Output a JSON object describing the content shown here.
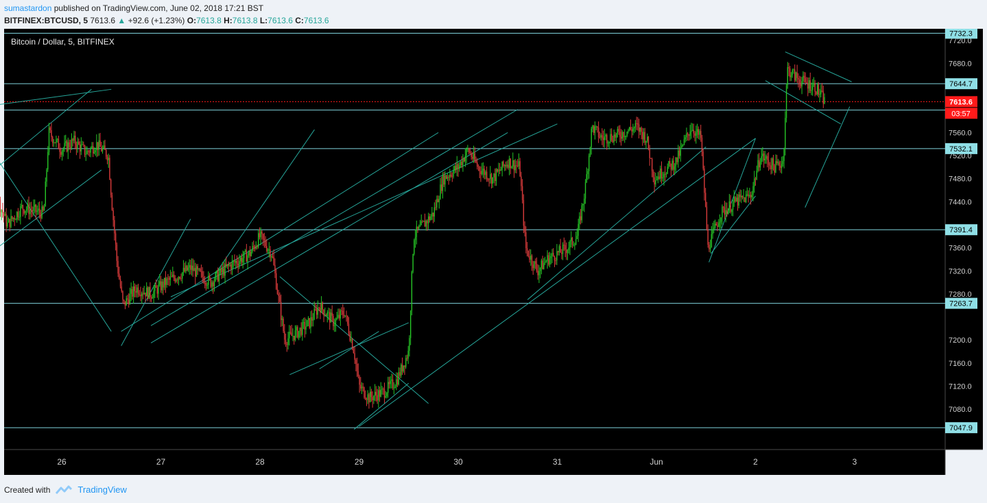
{
  "header": {
    "author": "sumastardon",
    "published_text": "published on TradingView.com, June 02, 2018 17:21 BST",
    "symbol": "BITFINEX:BTCUSD",
    "interval": "5",
    "last": "7613.6",
    "change": "+92.6 (+1.23%)",
    "o_label": "O:",
    "o_value": "7613.8",
    "h_label": "H:",
    "h_value": "7613.8",
    "l_label": "L:",
    "l_value": "7613.6",
    "c_label": "C:",
    "c_value": "7613.6"
  },
  "footer": {
    "created_with": "Created with",
    "brand": "TradingView"
  },
  "colors": {
    "background": "#000000",
    "level_line": "#7fd3dc",
    "trend_line": "#26a69a",
    "candle_up": "#26c426",
    "candle_down": "#d93b3b",
    "current_price": "#ff1a1a",
    "axis_text": "#d0d0d0"
  },
  "chart_data": {
    "type": "candlestick",
    "title": "Bitcoin / Dollar, 5, BITFINEX",
    "ylim": [
      7010,
      7740
    ],
    "y_ticks": [
      7720.0,
      7680.0,
      7560.0,
      7520.0,
      7480.0,
      7440.0,
      7360.0,
      7320.0,
      7280.0,
      7200.0,
      7160.0,
      7120.0,
      7080.0
    ],
    "x_ticks": [
      {
        "label": "26",
        "t": 1
      },
      {
        "label": "27",
        "t": 2
      },
      {
        "label": "28",
        "t": 3
      },
      {
        "label": "29",
        "t": 4
      },
      {
        "label": "30",
        "t": 5
      },
      {
        "label": "31",
        "t": 6
      },
      {
        "label": "Jun",
        "t": 7
      },
      {
        "label": "2",
        "t": 8
      },
      {
        "label": "3",
        "t": 9
      }
    ],
    "horizontal_levels": [
      7732.3,
      7644.7,
      7532.1,
      7391.4,
      7263.7,
      7047.9
    ],
    "extra_level": 7599,
    "current_price": 7613.6,
    "countdown": "03:57",
    "price_path": [
      [
        0.0,
        7440
      ],
      [
        0.12,
        7490
      ],
      [
        0.3,
        7470
      ],
      [
        0.45,
        7400
      ],
      [
        0.6,
        7430
      ],
      [
        0.82,
        7420
      ],
      [
        0.87,
        7560
      ],
      [
        1.0,
        7530
      ],
      [
        1.12,
        7545
      ],
      [
        1.25,
        7525
      ],
      [
        1.35,
        7540
      ],
      [
        1.47,
        7520
      ],
      [
        1.5,
        7450
      ],
      [
        1.56,
        7330
      ],
      [
        1.62,
        7260
      ],
      [
        1.75,
        7290
      ],
      [
        1.9,
        7280
      ],
      [
        2.05,
        7300
      ],
      [
        2.3,
        7325
      ],
      [
        2.5,
        7300
      ],
      [
        2.7,
        7330
      ],
      [
        2.9,
        7350
      ],
      [
        3.0,
        7380
      ],
      [
        3.12,
        7350
      ],
      [
        3.25,
        7200
      ],
      [
        3.35,
        7210
      ],
      [
        3.5,
        7230
      ],
      [
        3.6,
        7260
      ],
      [
        3.75,
        7230
      ],
      [
        3.85,
        7250
      ],
      [
        3.95,
        7180
      ],
      [
        4.0,
        7120
      ],
      [
        4.1,
        7100
      ],
      [
        4.25,
        7110
      ],
      [
        4.38,
        7130
      ],
      [
        4.5,
        7180
      ],
      [
        4.55,
        7380
      ],
      [
        4.65,
        7400
      ],
      [
        4.75,
        7420
      ],
      [
        4.85,
        7480
      ],
      [
        5.0,
        7500
      ],
      [
        5.1,
        7530
      ],
      [
        5.2,
        7500
      ],
      [
        5.35,
        7480
      ],
      [
        5.5,
        7510
      ],
      [
        5.62,
        7500
      ],
      [
        5.68,
        7360
      ],
      [
        5.8,
        7320
      ],
      [
        5.9,
        7340
      ],
      [
        6.0,
        7350
      ],
      [
        6.1,
        7360
      ],
      [
        6.2,
        7380
      ],
      [
        6.28,
        7460
      ],
      [
        6.35,
        7570
      ],
      [
        6.45,
        7550
      ],
      [
        6.6,
        7555
      ],
      [
        6.8,
        7570
      ],
      [
        6.9,
        7550
      ],
      [
        6.98,
        7480
      ],
      [
        7.05,
        7490
      ],
      [
        7.2,
        7510
      ],
      [
        7.35,
        7570
      ],
      [
        7.45,
        7550
      ],
      [
        7.52,
        7360
      ],
      [
        7.65,
        7420
      ],
      [
        7.8,
        7440
      ],
      [
        7.95,
        7450
      ],
      [
        8.05,
        7520
      ],
      [
        8.2,
        7500
      ],
      [
        8.28,
        7510
      ],
      [
        8.32,
        7670
      ],
      [
        8.45,
        7650
      ],
      [
        8.6,
        7640
      ],
      [
        8.7,
        7613.6
      ]
    ]
  }
}
